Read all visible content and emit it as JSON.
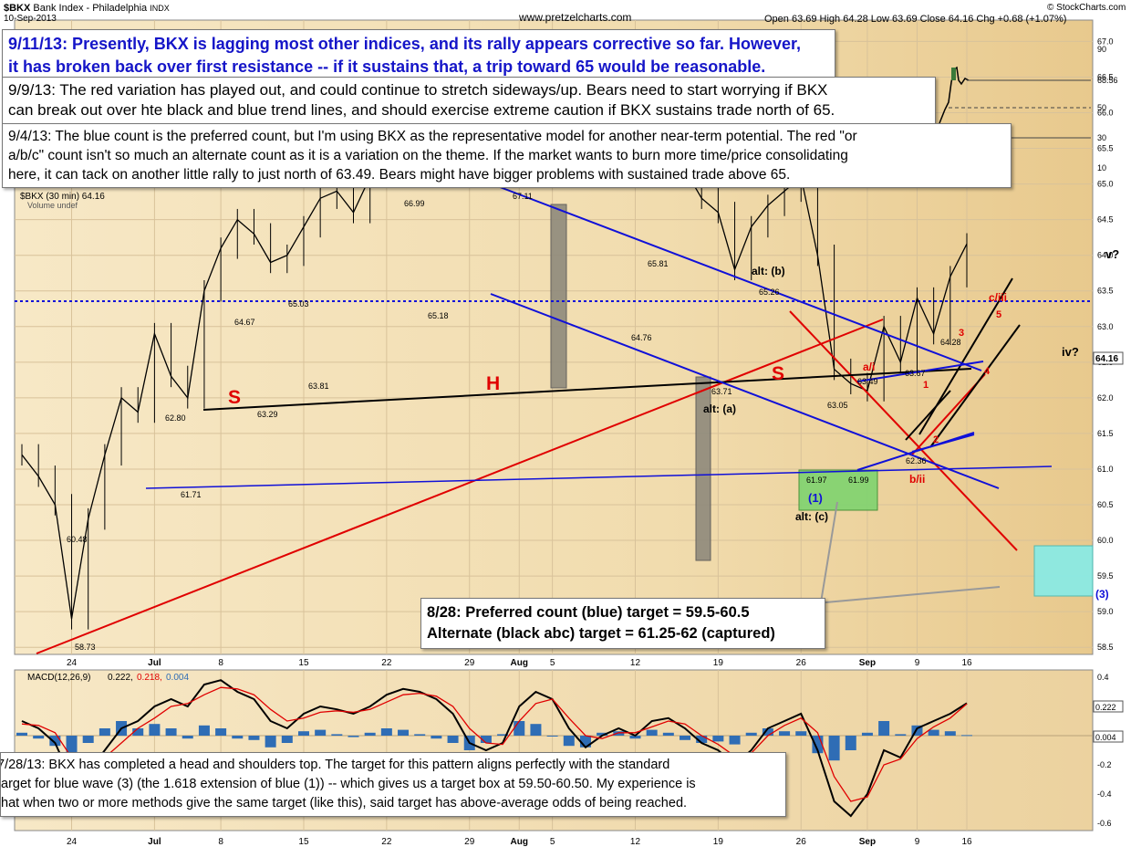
{
  "header": {
    "symbol": "$BKX",
    "name": "Bank Index - Philadelphia",
    "exchange": "INDX",
    "date": "10-Sep-2013",
    "site": "www.pretzelcharts.com",
    "ohlc": "Open 63.69  High 64.28  Low 63.69  Close 64.16  Chg +0.68 (+1.07%)",
    "copyright": "© StockCharts.com",
    "legend": "$BKX (30 min) 64.16",
    "volume": "Volume undef",
    "macd_legend": "MACD(12,26,9)",
    "macd_val": "0.222,",
    "macd_signal": "0.218,",
    "macd_hist": "0.004"
  },
  "notes": {
    "note_0911_line1": "9/11/13:  Presently, BKX is lagging most other indices, and its rally appears corrective so far.  However,",
    "note_0911_line2": "it has broken back over first resistance -- if it sustains that, a trip toward 65 would be reasonable.",
    "note_0909_line1": "9/9/13:  The red variation has played out, and could continue to stretch sideways/up.  Bears need to start worrying if BKX",
    "note_0909_line2": "can break out over hte black and blue trend lines, and should exercise extreme caution if BKX sustains trade north of 65.",
    "note_0904_line1": "9/4/13:  The blue count is the preferred count, but I'm using BKX as the representative model for another near-term potential.  The red \"or",
    "note_0904_line2": "a/b/c\" count isn't so much an alternate count as it is a variation on the theme.  If the market wants to burn more time/price consolidating",
    "note_0904_line3": "here, it can tack on another little rally to just north of 63.49.  Bears might have bigger problems with sustained trade above 65.",
    "note_0828_line1": "8/28: Preferred count (blue) target = 59.5-60.5",
    "note_0828_line2": "Alternate (black abc) target = 61.25-62 (captured)",
    "note_hs_line1": "7/28/13:  BKX has completed a head and shoulders top.  The target for this pattern aligns perfectly with the standard",
    "note_hs_line2": "target for blue wave (3) (the 1.618 extension of blue (1)) -- which gives us a target box at 59.50-60.50.  My experience is",
    "note_hs_line3": "that when two or more methods give the same target (like this), said target has above-average odds of being reached."
  },
  "colors": {
    "bg": "#f3deb4",
    "price": "#000000",
    "red": "#e00000",
    "blue": "#1010d8",
    "black": "#000000",
    "box_gray": "#8f8a7c",
    "box_green": "#7fd36f",
    "box_cyan": "#86ece8",
    "macd_hist": "#2f6db5",
    "macd_signal": "#e00000"
  },
  "chart_data": [
    {
      "type": "line",
      "title": "$BKX Bank Index - Philadelphia (30 min)",
      "ylim": [
        58.4,
        67.3
      ],
      "grid": true,
      "x_tick_labels": [
        "24",
        "Jul",
        "8",
        "15",
        "22",
        "29",
        "Aug",
        "5",
        "12",
        "19",
        "26",
        "Sep",
        "9",
        "16"
      ],
      "y_tick_labels": [
        "58.5",
        "59.0",
        "59.5",
        "60.0",
        "60.5",
        "61.0",
        "61.5",
        "62.0",
        "62.5",
        "63.0",
        "63.5",
        "64.0",
        "64.5",
        "65.0",
        "65.5",
        "66.0",
        "66.5",
        "67.0"
      ],
      "current_label": "64.16",
      "x": [
        "06-19",
        "06-20",
        "06-21",
        "06-24",
        "06-25",
        "06-26",
        "06-27",
        "06-28",
        "07-01",
        "07-02",
        "07-03",
        "07-05",
        "07-08",
        "07-09",
        "07-10",
        "07-11",
        "07-12",
        "07-15",
        "07-16",
        "07-17",
        "07-18",
        "07-19",
        "07-22",
        "07-23",
        "07-24",
        "07-25",
        "07-26",
        "07-29",
        "07-30",
        "07-31",
        "08-01",
        "08-02",
        "08-05",
        "08-06",
        "08-07",
        "08-08",
        "08-09",
        "08-12",
        "08-13",
        "08-14",
        "08-15",
        "08-16",
        "08-19",
        "08-20",
        "08-21",
        "08-22",
        "08-23",
        "08-26",
        "08-27",
        "08-28",
        "08-29",
        "08-30",
        "09-03",
        "09-04",
        "09-05",
        "09-06",
        "09-09",
        "09-10"
      ],
      "y": [
        61.2,
        60.9,
        60.5,
        58.9,
        60.3,
        61.2,
        62.0,
        61.8,
        62.9,
        62.3,
        62.0,
        63.5,
        64.1,
        64.5,
        64.3,
        63.9,
        64.0,
        64.4,
        64.8,
        64.9,
        64.6,
        65.1,
        65.7,
        66.2,
        66.5,
        66.9,
        66.3,
        65.4,
        65.2,
        65.3,
        66.9,
        67.0,
        66.6,
        65.8,
        65.2,
        65.6,
        65.4,
        65.3,
        65.7,
        65.7,
        65.2,
        64.8,
        64.6,
        63.8,
        64.4,
        64.7,
        64.9,
        65.1,
        64.0,
        62.4,
        62.2,
        62.1,
        63.0,
        62.5,
        63.4,
        62.9,
        63.7,
        64.16
      ]
    },
    {
      "type": "line",
      "title": "MACD(12,26,9)",
      "ylim": [
        -0.65,
        0.45
      ],
      "y_tick_labels": [
        "-0.6",
        "-0.4",
        "-0.2",
        "0.2",
        "0.4"
      ],
      "series": [
        {
          "name": "MACD",
          "values": [
            0.1,
            0.05,
            -0.05,
            -0.3,
            -0.25,
            -0.1,
            0.05,
            0.1,
            0.2,
            0.25,
            0.2,
            0.35,
            0.38,
            0.3,
            0.25,
            0.1,
            0.05,
            0.15,
            0.2,
            0.18,
            0.15,
            0.2,
            0.28,
            0.32,
            0.3,
            0.25,
            0.15,
            -0.05,
            -0.1,
            -0.05,
            0.2,
            0.3,
            0.25,
            0.05,
            -0.08,
            0.0,
            0.05,
            0.0,
            0.1,
            0.12,
            0.05,
            -0.05,
            -0.1,
            -0.2,
            -0.1,
            0.05,
            0.1,
            0.15,
            -0.1,
            -0.45,
            -0.55,
            -0.4,
            -0.1,
            -0.15,
            0.05,
            0.1,
            0.15,
            0.222
          ]
        },
        {
          "name": "Signal",
          "values": [
            0.08,
            0.07,
            0.02,
            -0.15,
            -0.2,
            -0.15,
            -0.05,
            0.05,
            0.12,
            0.2,
            0.22,
            0.28,
            0.33,
            0.32,
            0.28,
            0.18,
            0.1,
            0.12,
            0.16,
            0.17,
            0.16,
            0.18,
            0.23,
            0.28,
            0.29,
            0.27,
            0.2,
            0.05,
            -0.05,
            -0.06,
            0.1,
            0.22,
            0.25,
            0.12,
            0.0,
            -0.02,
            0.02,
            0.02,
            0.06,
            0.1,
            0.08,
            0.0,
            -0.06,
            -0.14,
            -0.12,
            0.0,
            0.07,
            0.12,
            0.02,
            -0.28,
            -0.45,
            -0.42,
            -0.2,
            -0.16,
            -0.02,
            0.06,
            0.12,
            0.218
          ]
        },
        {
          "name": "Histogram",
          "values": [
            0.02,
            -0.02,
            -0.07,
            -0.15,
            -0.05,
            0.05,
            0.1,
            0.05,
            0.08,
            0.05,
            -0.02,
            0.07,
            0.05,
            -0.02,
            -0.03,
            -0.08,
            -0.05,
            0.03,
            0.04,
            0.01,
            -0.01,
            0.02,
            0.05,
            0.04,
            0.01,
            -0.02,
            -0.05,
            -0.1,
            -0.05,
            0.01,
            0.1,
            0.08,
            0.0,
            -0.07,
            -0.08,
            0.02,
            0.03,
            -0.02,
            0.04,
            0.02,
            -0.03,
            -0.05,
            -0.04,
            -0.06,
            0.02,
            0.05,
            0.03,
            0.03,
            -0.12,
            -0.17,
            -0.1,
            0.02,
            0.1,
            0.01,
            0.07,
            0.04,
            0.03,
            0.004
          ]
        }
      ]
    }
  ],
  "annotations": {
    "lbl_S_left": "S",
    "lbl_H": "H",
    "lbl_S_right": "S",
    "alt_b": "alt: (b)",
    "alt_a": "alt: (a)",
    "alt_c": "alt: (c)",
    "wave_1": "(1)",
    "wave_3": "(3)",
    "a_i": "a/i",
    "b_ii": "b/ii",
    "c_iii": "c/iii",
    "v_q": "v?",
    "iv_q": "iv?",
    "n1": "1",
    "n2": "2",
    "n3": "3",
    "n4": "4",
    "n5": "5",
    "p_5873": "58.73",
    "p_6048": "60.48",
    "p_6171": "61.71",
    "p_6280": "62.80",
    "p_6467": "64.67",
    "p_6329": "63.29",
    "p_6503": "65.03",
    "p_6381": "63.81",
    "p_6699": "66.99",
    "p_6518": "65.18",
    "p_6711": "67.11",
    "p_6581": "65.81",
    "p_6476": "64.76",
    "p_6371": "63.71",
    "p_6526": "65.26",
    "p_6197": "61.97",
    "p_6199": "61.99",
    "p_6305": "63.05",
    "p_6349": "63.49",
    "p_6367": "63.67",
    "p_6236": "62.36",
    "p_6428": "64.28",
    "ext_9056": "90",
    "ext_6856": "68.56",
    "ext_50": "50",
    "ext_30": "30",
    "ext_10": "10"
  }
}
